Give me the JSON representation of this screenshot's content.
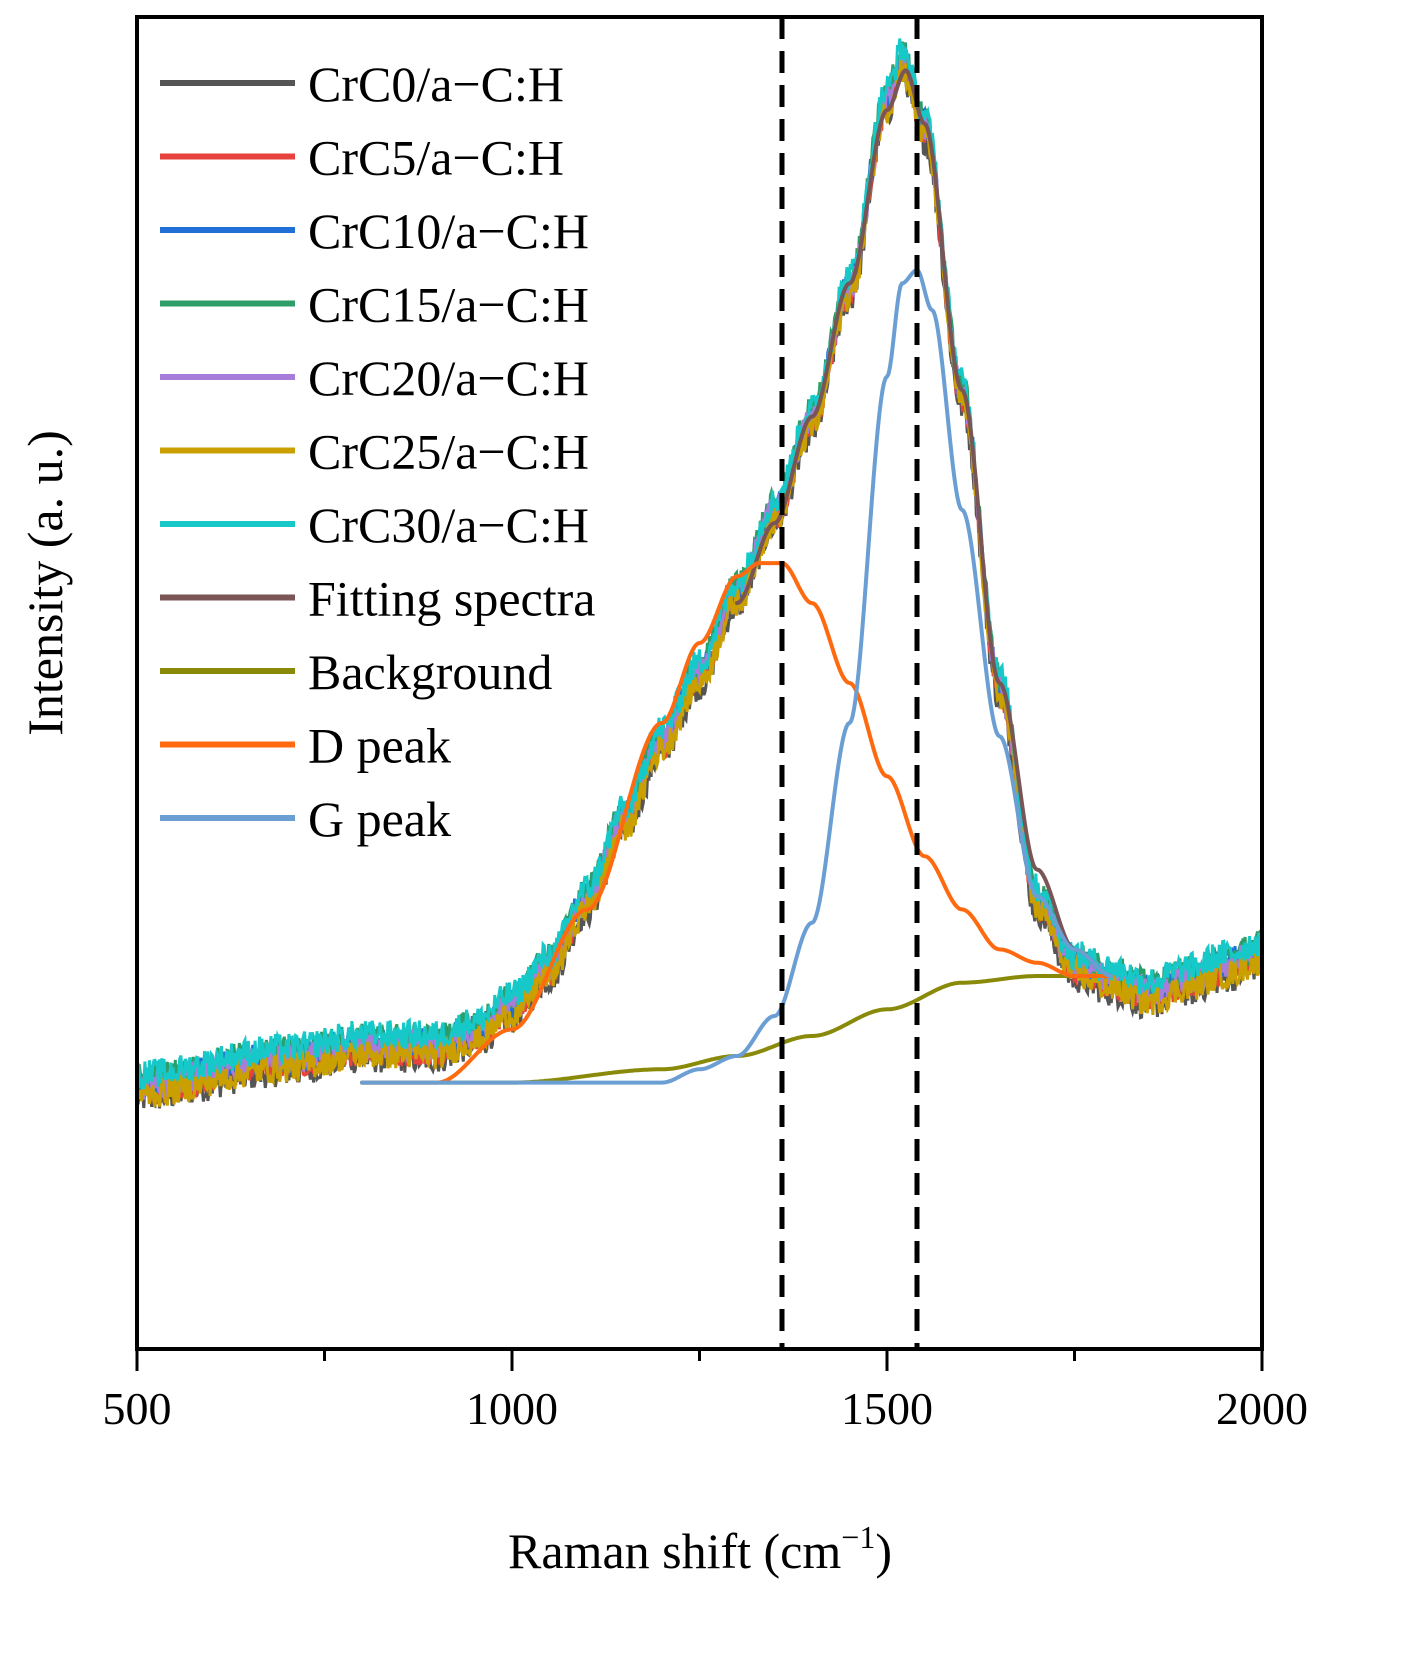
{
  "chart_data": {
    "type": "line",
    "title": "",
    "xlabel": "Raman shift (cm",
    "xlabel_superscript": "−1",
    "xlabel_close": ")",
    "ylabel": "Intensity (a. u.)",
    "xlim": [
      500,
      2000
    ],
    "ylim": [
      0,
      1.0
    ],
    "x_ticks": [
      "500",
      "1000",
      "1500",
      "2000"
    ],
    "grid": false,
    "legend_position": "top-left",
    "reference_lines_x": [
      1360,
      1540
    ],
    "measured_series": [
      {
        "name": "CrC0/a−C:H",
        "color": "#555555",
        "offset": -0.012
      },
      {
        "name": "CrC5/a−C:H",
        "color": "#e8423c",
        "offset": -0.006
      },
      {
        "name": "CrC10/a−C:H",
        "color": "#1f6fd6",
        "offset": 0.0
      },
      {
        "name": "CrC15/a−C:H",
        "color": "#2e9e68",
        "offset": 0.004
      },
      {
        "name": "CrC20/a−C:H",
        "color": "#a87dd9",
        "offset": -0.002
      },
      {
        "name": "CrC25/a−C:H",
        "color": "#c9a000",
        "offset": -0.009
      },
      {
        "name": "CrC30/a−C:H",
        "color": "#17c8c8",
        "offset": 0.006
      }
    ],
    "measured_profile": {
      "x": [
        500,
        700,
        800,
        900,
        950,
        1000,
        1050,
        1100,
        1150,
        1200,
        1250,
        1300,
        1350,
        1400,
        1450,
        1500,
        1520,
        1550,
        1600,
        1650,
        1700,
        1750,
        1800,
        1850,
        1900,
        1950,
        2000
      ],
      "y": [
        0.2,
        0.22,
        0.23,
        0.23,
        0.24,
        0.26,
        0.29,
        0.34,
        0.4,
        0.46,
        0.51,
        0.57,
        0.63,
        0.7,
        0.8,
        0.94,
        0.97,
        0.92,
        0.72,
        0.5,
        0.34,
        0.29,
        0.28,
        0.27,
        0.28,
        0.29,
        0.3
      ]
    },
    "fit_series": [
      {
        "name": "Fitting spectra",
        "color": "#7a5555",
        "x": [
          1300,
          1350,
          1400,
          1450,
          1500,
          1525,
          1550,
          1600,
          1650,
          1700,
          1750,
          1800
        ],
        "y": [
          0.56,
          0.62,
          0.7,
          0.8,
          0.93,
          0.96,
          0.92,
          0.72,
          0.5,
          0.36,
          0.3,
          0.28
        ]
      },
      {
        "name": "Background",
        "color": "#8a8a0a",
        "x": [
          800,
          1000,
          1200,
          1300,
          1400,
          1500,
          1600,
          1700,
          1800
        ],
        "y": [
          0.2,
          0.2,
          0.21,
          0.22,
          0.235,
          0.255,
          0.275,
          0.28,
          0.28
        ]
      },
      {
        "name": "D peak",
        "color": "#ff6a10",
        "x": [
          800,
          900,
          1000,
          1100,
          1200,
          1250,
          1300,
          1330,
          1360,
          1400,
          1450,
          1500,
          1550,
          1600,
          1650,
          1700,
          1750,
          1800
        ],
        "y": [
          0.2,
          0.2,
          0.24,
          0.33,
          0.47,
          0.53,
          0.58,
          0.59,
          0.59,
          0.56,
          0.5,
          0.43,
          0.37,
          0.33,
          0.3,
          0.29,
          0.28,
          0.28
        ]
      },
      {
        "name": "G peak",
        "color": "#6b9fd4",
        "x": [
          800,
          1000,
          1200,
          1250,
          1300,
          1350,
          1400,
          1450,
          1500,
          1520,
          1540,
          1560,
          1600,
          1650,
          1700,
          1750,
          1800
        ],
        "y": [
          0.2,
          0.2,
          0.2,
          0.21,
          0.22,
          0.25,
          0.32,
          0.47,
          0.73,
          0.8,
          0.81,
          0.78,
          0.63,
          0.46,
          0.34,
          0.3,
          0.28
        ]
      }
    ]
  }
}
